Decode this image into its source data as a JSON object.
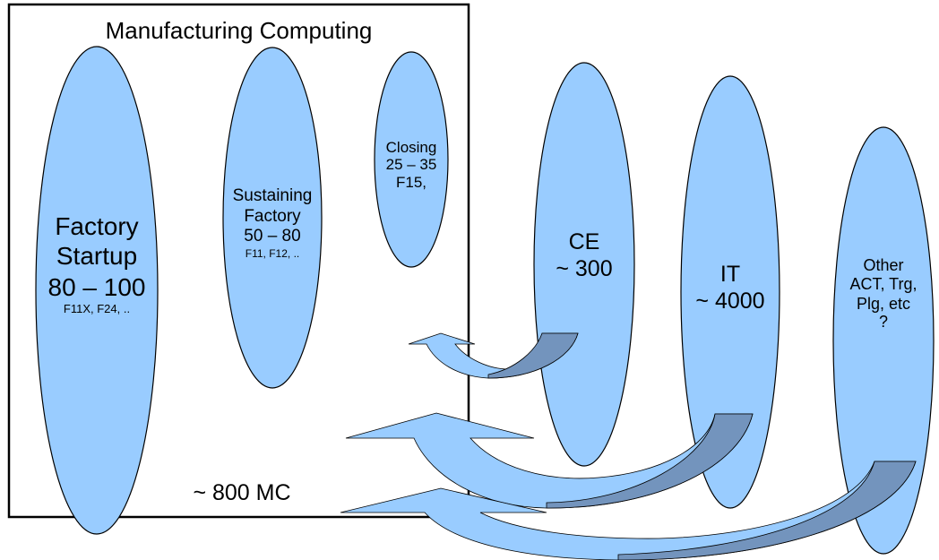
{
  "box": {
    "title": "Manufacturing Computing",
    "total": "~ 800 MC"
  },
  "groups": {
    "startup": {
      "line1": "Factory",
      "line2": "Startup",
      "range": "80 – 100",
      "fabs": "F11X, F24, .."
    },
    "sustaining": {
      "line1": "Sustaining",
      "line2": "Factory",
      "range": "50 – 80",
      "fabs": "F11, F12, .."
    },
    "closing": {
      "line1": "Closing",
      "range": "25 – 35",
      "fabs": "F15,"
    },
    "ce": {
      "name": "CE",
      "count": "~ 300"
    },
    "it": {
      "name": "IT",
      "count": "~ 4000"
    },
    "other": {
      "line1": "Other",
      "line2": "ACT, Trg,",
      "line3": "Plg, etc",
      "line4": "?"
    }
  },
  "colors": {
    "ellipse_fill": "#99ccff",
    "arrow_front": "#99ccff",
    "arrow_back": "#7394bd",
    "outline": "#000000"
  }
}
